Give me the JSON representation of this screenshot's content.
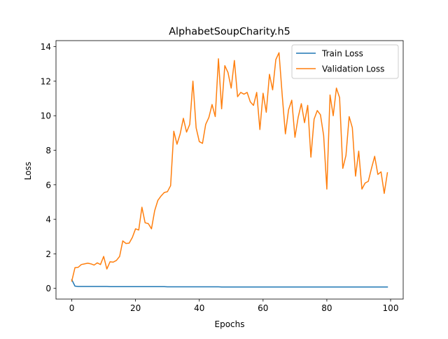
{
  "chart_data": {
    "type": "line",
    "title": "AlphabetSoupCharity.h5",
    "xlabel": "Epochs",
    "ylabel": "Loss",
    "xlim": [
      -4.95,
      103.95
    ],
    "ylim": [
      -0.62,
      14.35
    ],
    "x_ticks": [
      0,
      20,
      40,
      60,
      80,
      100
    ],
    "y_ticks": [
      0,
      2,
      4,
      6,
      8,
      10,
      12,
      14
    ],
    "legend_position": "top-right",
    "grid": false,
    "series": [
      {
        "name": "Train Loss",
        "color": "#1f77b4",
        "values": [
          0.5,
          0.13,
          0.11,
          0.11,
          0.11,
          0.11,
          0.11,
          0.11,
          0.11,
          0.11,
          0.11,
          0.11,
          0.1,
          0.1,
          0.1,
          0.1,
          0.1,
          0.1,
          0.1,
          0.1,
          0.1,
          0.1,
          0.1,
          0.1,
          0.1,
          0.1,
          0.1,
          0.1,
          0.1,
          0.1,
          0.09,
          0.09,
          0.09,
          0.09,
          0.09,
          0.09,
          0.09,
          0.09,
          0.09,
          0.09,
          0.09,
          0.09,
          0.09,
          0.09,
          0.09,
          0.09,
          0.09,
          0.08,
          0.08,
          0.08,
          0.08,
          0.08,
          0.08,
          0.08,
          0.08,
          0.08,
          0.08,
          0.08,
          0.08,
          0.08,
          0.08,
          0.08,
          0.08,
          0.08,
          0.08,
          0.08,
          0.08,
          0.08,
          0.08,
          0.08,
          0.08,
          0.08,
          0.08,
          0.08,
          0.08,
          0.08,
          0.08,
          0.08,
          0.08,
          0.08,
          0.08,
          0.08,
          0.08,
          0.08,
          0.08,
          0.08,
          0.08,
          0.08,
          0.08,
          0.08,
          0.08,
          0.08,
          0.08,
          0.08,
          0.08,
          0.08,
          0.08,
          0.08,
          0.08,
          0.08
        ]
      },
      {
        "name": "Validation Loss",
        "color": "#ff7f0e",
        "values": [
          0.42,
          1.2,
          1.22,
          1.38,
          1.42,
          1.46,
          1.42,
          1.35,
          1.48,
          1.38,
          1.85,
          1.12,
          1.54,
          1.52,
          1.62,
          1.85,
          2.75,
          2.6,
          2.62,
          2.95,
          3.45,
          3.38,
          4.7,
          3.8,
          3.75,
          3.45,
          4.5,
          5.1,
          5.35,
          5.55,
          5.6,
          5.95,
          9.1,
          8.35,
          8.95,
          9.85,
          9.05,
          9.5,
          12.0,
          9.3,
          8.5,
          8.4,
          9.5,
          9.9,
          10.65,
          9.95,
          13.3,
          10.4,
          12.9,
          12.5,
          11.6,
          13.2,
          11.1,
          11.35,
          11.25,
          11.35,
          10.8,
          10.6,
          11.35,
          9.2,
          11.3,
          10.2,
          12.4,
          11.5,
          13.25,
          13.65,
          11.2,
          8.95,
          10.35,
          10.9,
          8.75,
          9.9,
          10.7,
          9.6,
          10.6,
          7.6,
          9.8,
          10.3,
          10.05,
          8.85,
          5.75,
          11.2,
          10.0,
          11.6,
          11.05,
          6.95,
          7.7,
          9.95,
          9.3,
          6.5,
          7.95,
          5.75,
          6.1,
          6.2,
          6.95,
          7.65,
          6.6,
          6.75,
          5.5,
          6.7
        ]
      }
    ]
  }
}
